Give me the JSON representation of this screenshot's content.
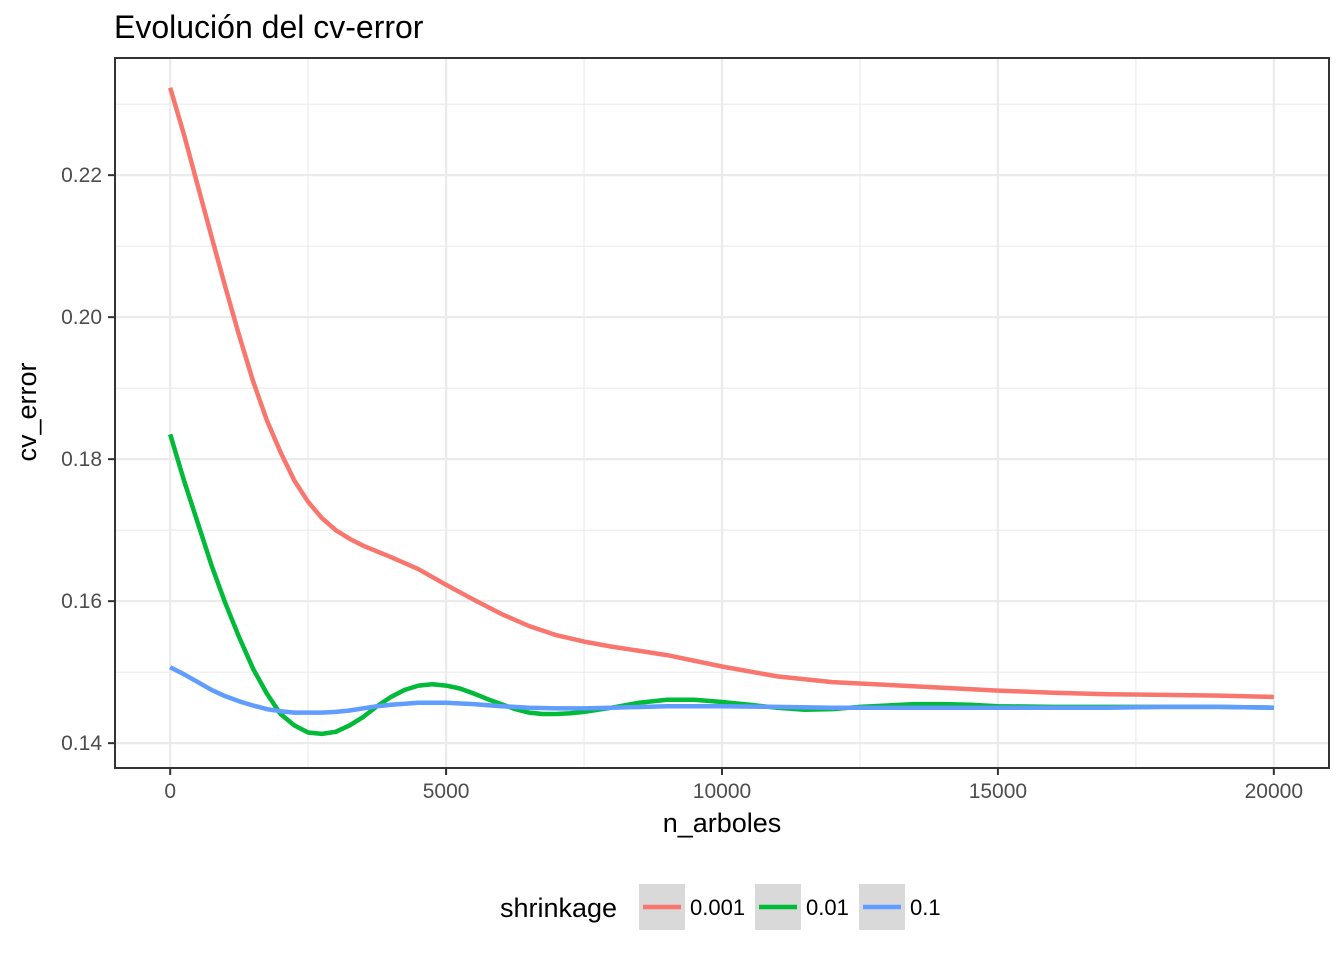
{
  "chart_data": {
    "type": "line",
    "title": "Evolución del cv-error",
    "xlabel": "n_arboles",
    "ylabel": "cv_error",
    "xlim": [
      -1000,
      21000
    ],
    "ylim": [
      0.1365,
      0.2365
    ],
    "x_ticks": [
      0,
      5000,
      10000,
      15000,
      20000
    ],
    "y_ticks": [
      0.14,
      0.16,
      0.18,
      0.2,
      0.22
    ],
    "x_tick_labels": [
      "0",
      "5000",
      "10000",
      "15000",
      "20000"
    ],
    "y_tick_labels": [
      "0.14",
      "0.16",
      "0.18",
      "0.20",
      "0.22"
    ],
    "grid": true,
    "legend": {
      "title": "shrinkage",
      "position": "bottom"
    },
    "series": [
      {
        "name": "0.001",
        "color": "#f8766d",
        "x": [
          0,
          250,
          500,
          750,
          1000,
          1250,
          1500,
          1750,
          2000,
          2250,
          2500,
          2750,
          3000,
          3250,
          3500,
          3750,
          4000,
          4500,
          5000,
          5500,
          6000,
          6500,
          7000,
          7500,
          8000,
          9000,
          10000,
          11000,
          12000,
          13000,
          14000,
          15000,
          16000,
          17000,
          18000,
          19000,
          20000
        ],
        "y": [
          0.2323,
          0.2257,
          0.2185,
          0.2113,
          0.2042,
          0.1974,
          0.191,
          0.1855,
          0.181,
          0.177,
          0.174,
          0.1717,
          0.17,
          0.1688,
          0.1678,
          0.167,
          0.1662,
          0.1645,
          0.1623,
          0.1602,
          0.1582,
          0.1565,
          0.1552,
          0.1543,
          0.1536,
          0.1524,
          0.1508,
          0.1494,
          0.1486,
          0.1482,
          0.1478,
          0.1474,
          0.1471,
          0.1469,
          0.1468,
          0.1467,
          0.1465
        ]
      },
      {
        "name": "0.01",
        "color": "#00ba38",
        "x": [
          0,
          250,
          500,
          750,
          1000,
          1250,
          1500,
          1750,
          2000,
          2250,
          2500,
          2750,
          3000,
          3250,
          3500,
          3750,
          4000,
          4250,
          4500,
          4750,
          5000,
          5250,
          5500,
          5750,
          6000,
          6250,
          6500,
          6750,
          7000,
          7250,
          7500,
          7750,
          8000,
          8500,
          9000,
          9500,
          10000,
          10500,
          11000,
          11500,
          12000,
          12500,
          13000,
          13500,
          14000,
          14500,
          15000,
          16000,
          17000,
          18000,
          19000,
          20000
        ],
        "y": [
          0.1835,
          0.177,
          0.171,
          0.165,
          0.1597,
          0.1549,
          0.1505,
          0.147,
          0.1441,
          0.1425,
          0.1415,
          0.1413,
          0.1416,
          0.1425,
          0.1437,
          0.1452,
          0.1465,
          0.1475,
          0.1481,
          0.1483,
          0.1481,
          0.1477,
          0.147,
          0.1462,
          0.1455,
          0.1448,
          0.1443,
          0.1441,
          0.1441,
          0.1442,
          0.1444,
          0.1447,
          0.145,
          0.1457,
          0.1461,
          0.1461,
          0.1458,
          0.1454,
          0.145,
          0.1447,
          0.1448,
          0.1451,
          0.1453,
          0.1455,
          0.1455,
          0.1454,
          0.1452,
          0.1451,
          0.1451,
          0.1451,
          0.1451,
          0.145
        ]
      },
      {
        "name": "0.1",
        "color": "#619cff",
        "x": [
          0,
          250,
          500,
          750,
          1000,
          1250,
          1500,
          1750,
          2000,
          2250,
          2500,
          2750,
          3000,
          3250,
          3500,
          3750,
          4000,
          4500,
          5000,
          5500,
          6000,
          6500,
          7000,
          7500,
          8000,
          9000,
          10000,
          11000,
          12000,
          13000,
          14000,
          15000,
          16000,
          17000,
          18000,
          19000,
          20000
        ],
        "y": [
          0.1507,
          0.1497,
          0.1486,
          0.1475,
          0.1466,
          0.1459,
          0.1453,
          0.1448,
          0.1445,
          0.1443,
          0.1443,
          0.1443,
          0.1444,
          0.1446,
          0.1449,
          0.1452,
          0.1454,
          0.1457,
          0.1457,
          0.1455,
          0.1452,
          0.145,
          0.1449,
          0.1449,
          0.145,
          0.1452,
          0.1452,
          0.1451,
          0.145,
          0.145,
          0.145,
          0.145,
          0.145,
          0.145,
          0.1451,
          0.1451,
          0.145
        ]
      }
    ]
  }
}
